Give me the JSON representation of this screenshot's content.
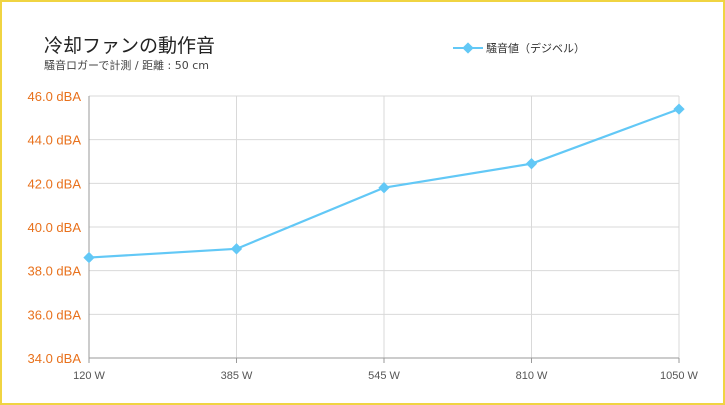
{
  "chart_data": {
    "type": "line",
    "title": "冷却ファンの動作音",
    "subtitle": "騒音ロガーで計測 / 距離 : 50 cm",
    "categories": [
      "120 W",
      "385 W",
      "545 W",
      "810 W",
      "1050 W"
    ],
    "series": [
      {
        "name": "騒音値（デジベル）",
        "values": [
          38.6,
          39.0,
          41.8,
          42.9,
          45.4
        ],
        "color": "#62c8f6"
      }
    ],
    "ylim": [
      34.0,
      46.0
    ],
    "yticks": [
      "46.0 dBA",
      "44.0 dBA",
      "42.0 dBA",
      "40.0 dBA",
      "38.0 dBA",
      "36.0 dBA",
      "34.0 dBA"
    ],
    "ytick_values": [
      46,
      44,
      42,
      40,
      38,
      36,
      34
    ],
    "grid": true,
    "legend_position": "top-right",
    "ytick_color": "#e8711c",
    "border_color": "#f0d442"
  }
}
